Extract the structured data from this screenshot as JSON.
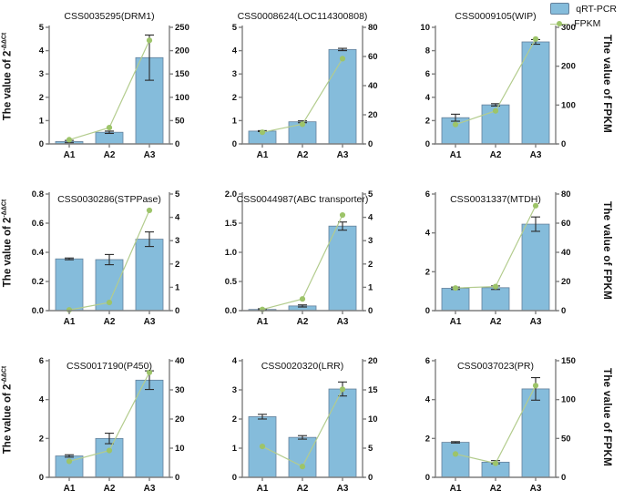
{
  "legend": {
    "items": [
      {
        "label": "qRT-PCR",
        "marker": "bar-swatch"
      },
      {
        "label": "FPKM",
        "marker": "line-dot"
      }
    ]
  },
  "labels": {
    "left_base": "The value of 2",
    "left_sup": "-ΔΔCt",
    "right": "The value of FPKM"
  },
  "x_categories": [
    "A1",
    "A2",
    "A3"
  ],
  "colors": {
    "bar_fill": "#85bcdb",
    "bar_stroke": "#64809b",
    "fpkm_line": "#b3cc8d",
    "fpkm_dot": "#9dc469",
    "axis": "#7f7f7f",
    "error_bar": "#2a2a2a",
    "text": "#111111"
  },
  "chart_data": [
    {
      "type": "bar",
      "title": "CSS0035295(DRM1)",
      "categories": [
        "A1",
        "A2",
        "A3"
      ],
      "series": [
        {
          "name": "qRT-PCR",
          "axis": "left",
          "values": [
            0.1,
            0.5,
            3.7
          ],
          "errors": [
            0.05,
            0.05,
            0.97
          ]
        },
        {
          "name": "FPKM",
          "axis": "right",
          "values": [
            9,
            35,
            222
          ]
        }
      ],
      "left_axis": {
        "min": 0,
        "max": 5,
        "ticks": [
          "0",
          "1",
          "2",
          "3",
          "4",
          "5"
        ]
      },
      "right_axis": {
        "min": 0,
        "max": 250,
        "ticks": [
          "0",
          "50",
          "100",
          "150",
          "200",
          "250"
        ]
      }
    },
    {
      "type": "bar",
      "title": "CSS0008624(LOC114300808)",
      "categories": [
        "A1",
        "A2",
        "A3"
      ],
      "series": [
        {
          "name": "qRT-PCR",
          "axis": "left",
          "values": [
            0.55,
            0.95,
            4.05
          ],
          "errors": [
            0.02,
            0.04,
            0.05
          ]
        },
        {
          "name": "FPKM",
          "axis": "right",
          "values": [
            8,
            13.5,
            58.5
          ]
        }
      ],
      "left_axis": {
        "min": 0,
        "max": 5,
        "ticks": [
          "0",
          "1",
          "2",
          "3",
          "4",
          "5"
        ]
      },
      "right_axis": {
        "min": 0,
        "max": 80,
        "ticks": [
          "0",
          "20",
          "40",
          "60",
          "80"
        ]
      }
    },
    {
      "type": "bar",
      "title": "CSS0009105(WIP)",
      "categories": [
        "A1",
        "A2",
        "A3"
      ],
      "series": [
        {
          "name": "qRT-PCR",
          "axis": "left",
          "values": [
            2.25,
            3.35,
            8.75
          ],
          "errors": [
            0.3,
            0.1,
            0.2
          ]
        },
        {
          "name": "FPKM",
          "axis": "right",
          "values": [
            50,
            85,
            270
          ]
        }
      ],
      "left_axis": {
        "min": 0,
        "max": 10,
        "ticks": [
          "0",
          "2",
          "4",
          "6",
          "8",
          "10"
        ]
      },
      "right_axis": {
        "min": 0,
        "max": 300,
        "ticks": [
          "0",
          "100",
          "200",
          "300"
        ]
      }
    },
    {
      "type": "bar",
      "title": "CSS0030286(STPPase)",
      "categories": [
        "A1",
        "A2",
        "A3"
      ],
      "series": [
        {
          "name": "qRT-PCR",
          "axis": "left",
          "values": [
            0.355,
            0.35,
            0.49
          ],
          "errors": [
            0.006,
            0.035,
            0.05
          ]
        },
        {
          "name": "FPKM",
          "axis": "right",
          "values": [
            0.03,
            0.35,
            4.3
          ]
        }
      ],
      "left_axis": {
        "min": 0,
        "max": 0.8,
        "ticks": [
          "0.0",
          "0.2",
          "0.4",
          "0.6",
          "0.8"
        ]
      },
      "right_axis": {
        "min": 0,
        "max": 5,
        "ticks": [
          "0",
          "1",
          "2",
          "3",
          "4",
          "5"
        ]
      }
    },
    {
      "type": "bar",
      "title": "CSS0044987(ABC transporter)",
      "categories": [
        "A1",
        "A2",
        "A3"
      ],
      "series": [
        {
          "name": "qRT-PCR",
          "axis": "left",
          "values": [
            0.02,
            0.08,
            1.45
          ],
          "errors": [
            0.012,
            0.018,
            0.07
          ]
        },
        {
          "name": "FPKM",
          "axis": "right",
          "values": [
            0.05,
            0.5,
            4.1
          ]
        }
      ],
      "left_axis": {
        "min": 0,
        "max": 2.0,
        "ticks": [
          "0.0",
          "0.5",
          "1.0",
          "1.5",
          "2.0"
        ]
      },
      "right_axis": {
        "min": 0,
        "max": 5,
        "ticks": [
          "0",
          "1",
          "2",
          "3",
          "4",
          "5"
        ]
      }
    },
    {
      "type": "bar",
      "title": "CSS0031337(MTDH)",
      "categories": [
        "A1",
        "A2",
        "A3"
      ],
      "series": [
        {
          "name": "qRT-PCR",
          "axis": "left",
          "values": [
            1.15,
            1.18,
            4.45
          ],
          "errors": [
            0.06,
            0.09,
            0.37
          ]
        },
        {
          "name": "FPKM",
          "axis": "right",
          "values": [
            15.5,
            16.5,
            72
          ]
        }
      ],
      "left_axis": {
        "min": 0,
        "max": 6,
        "ticks": [
          "0",
          "2",
          "4",
          "6"
        ]
      },
      "right_axis": {
        "min": 0,
        "max": 80,
        "ticks": [
          "0",
          "20",
          "40",
          "60",
          "80"
        ]
      }
    },
    {
      "type": "bar",
      "title": "CSS0017190(P450)",
      "categories": [
        "A1",
        "A2",
        "A3"
      ],
      "series": [
        {
          "name": "qRT-PCR",
          "axis": "left",
          "values": [
            1.1,
            2.0,
            5.0
          ],
          "errors": [
            0.06,
            0.27,
            0.48
          ]
        },
        {
          "name": "FPKM",
          "axis": "right",
          "values": [
            5.5,
            9.2,
            36
          ]
        }
      ],
      "left_axis": {
        "min": 0,
        "max": 6,
        "ticks": [
          "0",
          "2",
          "4",
          "6"
        ]
      },
      "right_axis": {
        "min": 0,
        "max": 40,
        "ticks": [
          "0",
          "10",
          "20",
          "30",
          "40"
        ]
      }
    },
    {
      "type": "bar",
      "title": "CSS0020320(LRR)",
      "categories": [
        "A1",
        "A2",
        "A3"
      ],
      "series": [
        {
          "name": "qRT-PCR",
          "axis": "left",
          "values": [
            2.08,
            1.37,
            3.03
          ],
          "errors": [
            0.08,
            0.06,
            0.24
          ]
        },
        {
          "name": "FPKM",
          "axis": "right",
          "values": [
            5.3,
            1.85,
            15.1
          ]
        }
      ],
      "left_axis": {
        "min": 0,
        "max": 4,
        "ticks": [
          "0",
          "1",
          "2",
          "3",
          "4"
        ]
      },
      "right_axis": {
        "min": 0,
        "max": 20,
        "ticks": [
          "0",
          "5",
          "10",
          "15",
          "20"
        ]
      }
    },
    {
      "type": "bar",
      "title": "CSS0037023(PR)",
      "categories": [
        "A1",
        "A2",
        "A3"
      ],
      "series": [
        {
          "name": "qRT-PCR",
          "axis": "left",
          "values": [
            1.8,
            0.78,
            4.55
          ],
          "errors": [
            0.035,
            0.08,
            0.58
          ]
        },
        {
          "name": "FPKM",
          "axis": "right",
          "values": [
            30,
            18,
            118
          ]
        }
      ],
      "left_axis": {
        "min": 0,
        "max": 6,
        "ticks": [
          "0",
          "2",
          "4",
          "6"
        ]
      },
      "right_axis": {
        "min": 0,
        "max": 150,
        "ticks": [
          "0",
          "50",
          "100",
          "150"
        ]
      }
    }
  ]
}
